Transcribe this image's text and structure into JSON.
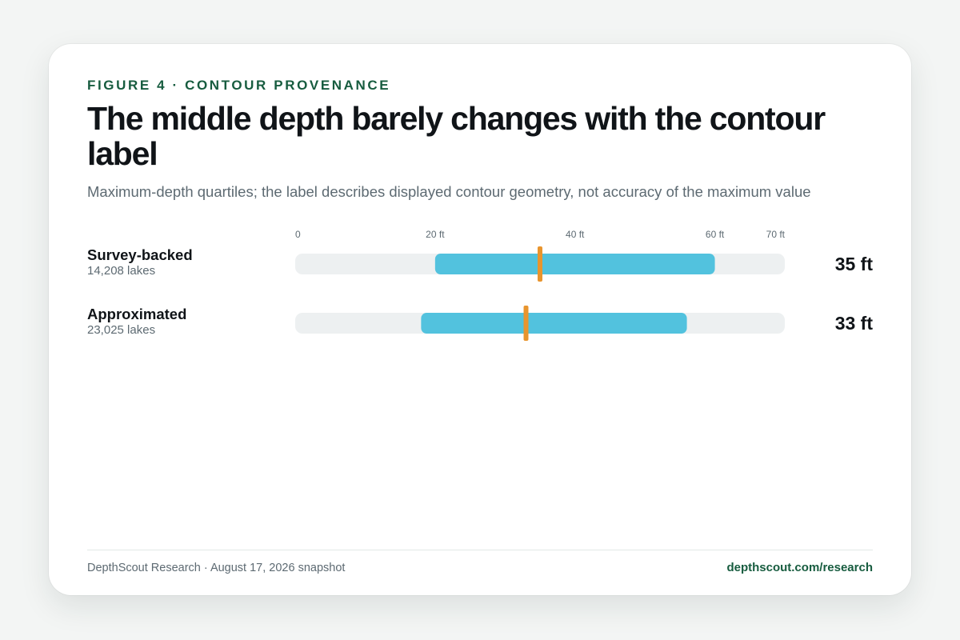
{
  "eyebrow": "FIGURE 4 · CONTOUR PROVENANCE",
  "title": "The middle depth barely changes with the contour label",
  "subtitle": "Maximum-depth quartiles; the label describes displayed contour geometry, not accuracy of the maximum value",
  "chart_data": {
    "type": "range-bar",
    "x_ticks": [
      "0",
      "20 ft",
      "40 ft",
      "60 ft",
      "70 ft"
    ],
    "x_tick_values": [
      0,
      20,
      40,
      60,
      70
    ],
    "xlim": [
      0,
      70
    ],
    "unit": "ft",
    "rows": [
      {
        "label": "Survey-backed",
        "count": "14,208 lakes",
        "q1": 20,
        "median": 35,
        "q3": 60,
        "value_label": "35 ft"
      },
      {
        "label": "Approximated",
        "count": "23,025 lakes",
        "q1": 18,
        "median": 33,
        "q3": 56,
        "value_label": "33 ft"
      }
    ],
    "colors": {
      "track": "#edf0f1",
      "iqr": "#52c2de",
      "median": "#e8952e"
    }
  },
  "footer": {
    "source": "DepthScout Research · August 17, 2026 snapshot",
    "link": "depthscout.com/research"
  }
}
